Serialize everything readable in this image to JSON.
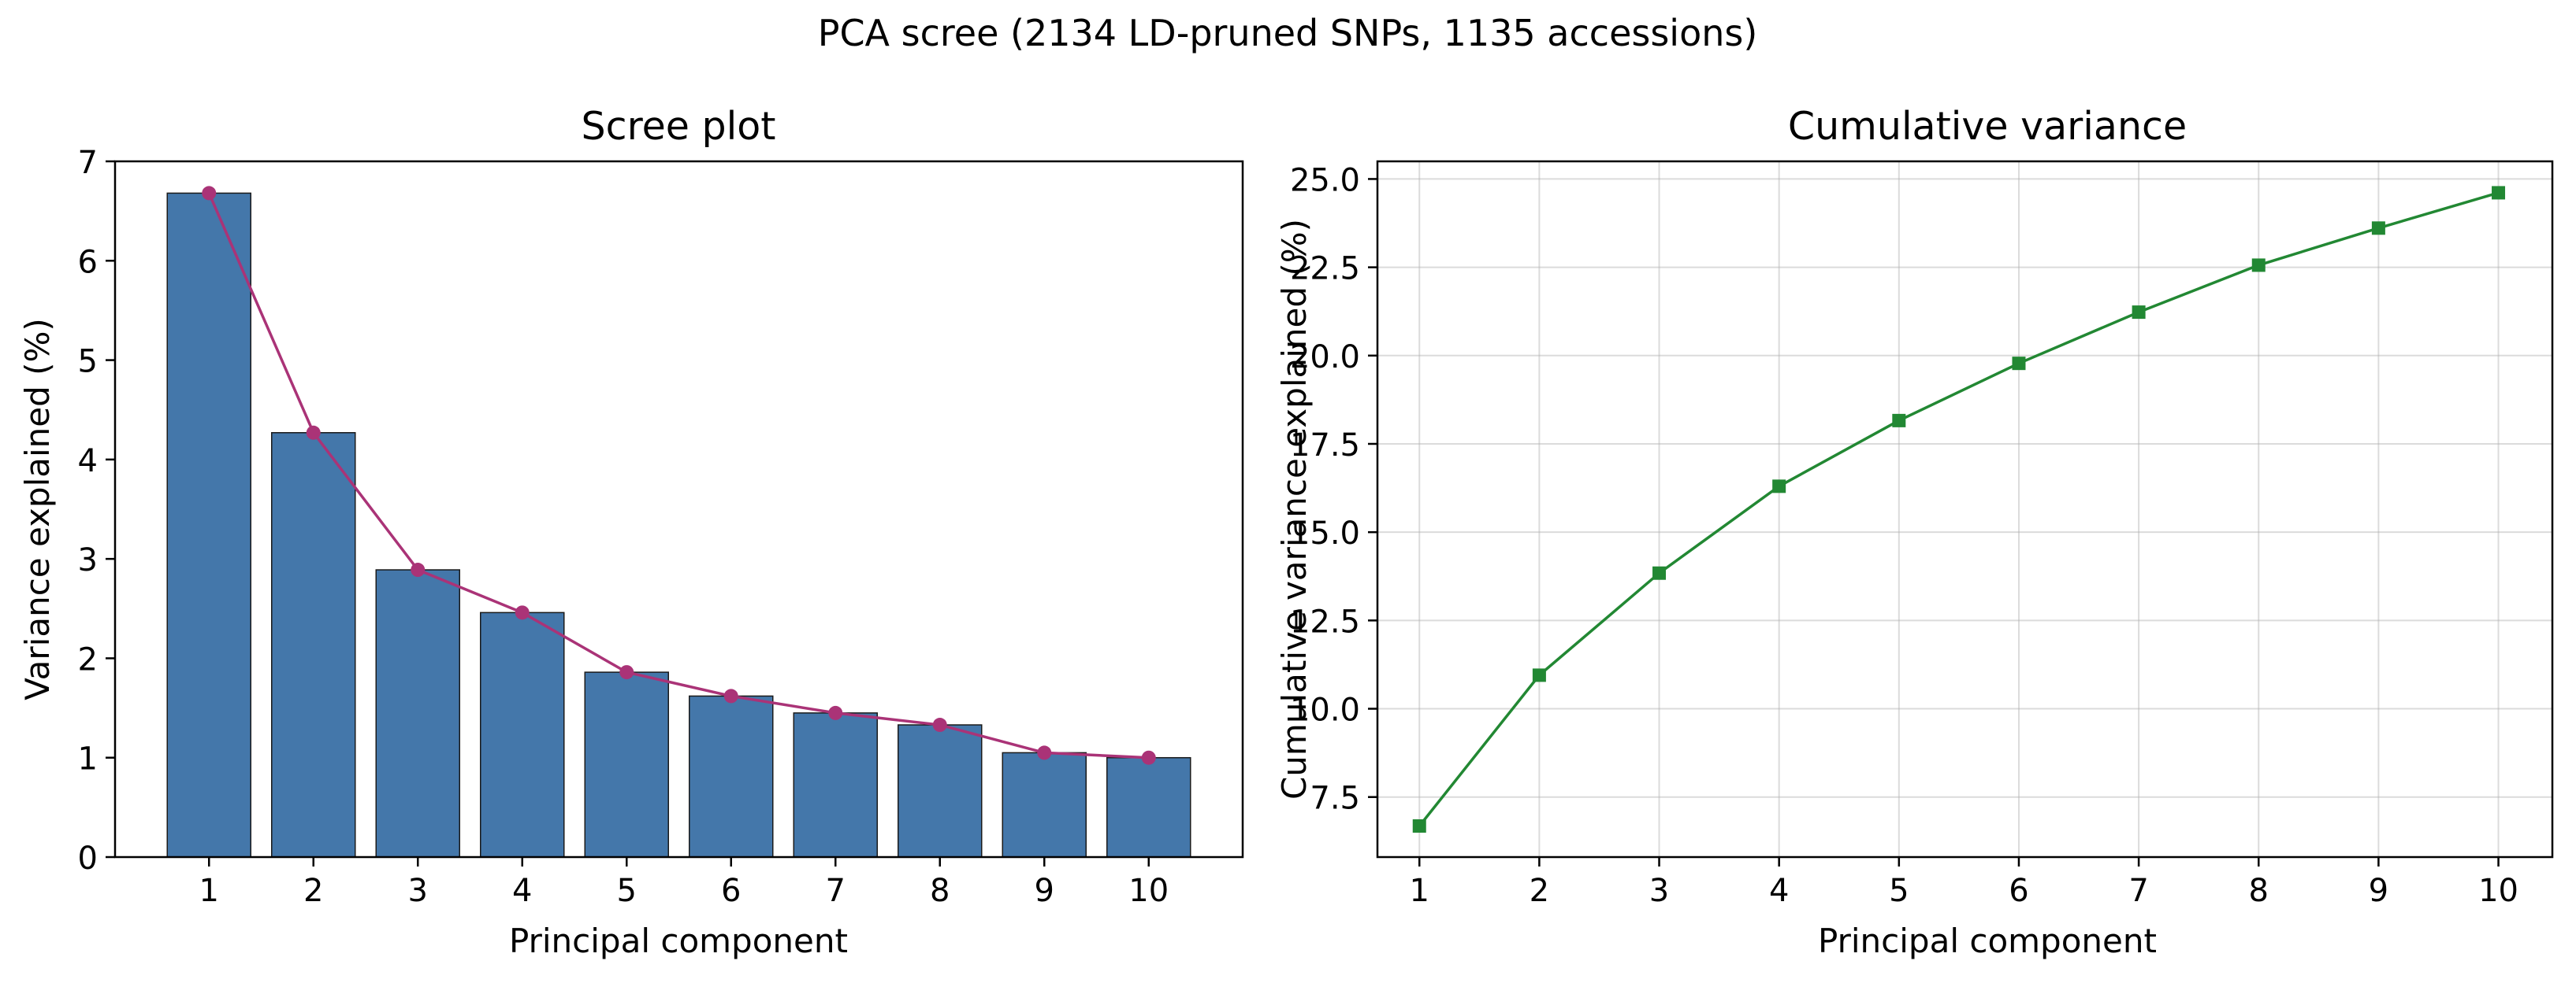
{
  "figure": {
    "suptitle": "PCA scree (2134 LD-pruned SNPs, 1135 accessions)"
  },
  "chart_data": [
    {
      "type": "bar",
      "title": "Scree plot",
      "xlabel": "Principal component",
      "ylabel": "Variance explained (%)",
      "categories": [
        "1",
        "2",
        "3",
        "4",
        "5",
        "6",
        "7",
        "8",
        "9",
        "10"
      ],
      "values": [
        6.68,
        4.27,
        2.89,
        2.46,
        1.86,
        1.62,
        1.45,
        1.33,
        1.05,
        1.0
      ],
      "overlay_line": true,
      "ylim": [
        0,
        7
      ],
      "yticks": [
        0,
        1,
        2,
        3,
        4,
        5,
        6,
        7
      ],
      "grid": false,
      "colors": {
        "bar": "#4477aa",
        "bar_edge": "#1a1a1a",
        "line": "#aa3377"
      }
    },
    {
      "type": "line",
      "title": "Cumulative variance",
      "xlabel": "Principal component",
      "ylabel": "Cumulative variance explained (%)",
      "x": [
        1,
        2,
        3,
        4,
        5,
        6,
        7,
        8,
        9,
        10
      ],
      "values": [
        6.68,
        10.95,
        13.84,
        16.3,
        18.16,
        19.78,
        21.23,
        22.56,
        23.61,
        24.61
      ],
      "xlim": [
        0.65,
        10.45
      ],
      "ylim": [
        5.8,
        25.5
      ],
      "yticks": [
        7.5,
        10.0,
        12.5,
        15.0,
        17.5,
        20.0,
        22.5,
        25.0
      ],
      "grid": true,
      "marker": "square",
      "colors": {
        "line": "#228833"
      }
    }
  ]
}
